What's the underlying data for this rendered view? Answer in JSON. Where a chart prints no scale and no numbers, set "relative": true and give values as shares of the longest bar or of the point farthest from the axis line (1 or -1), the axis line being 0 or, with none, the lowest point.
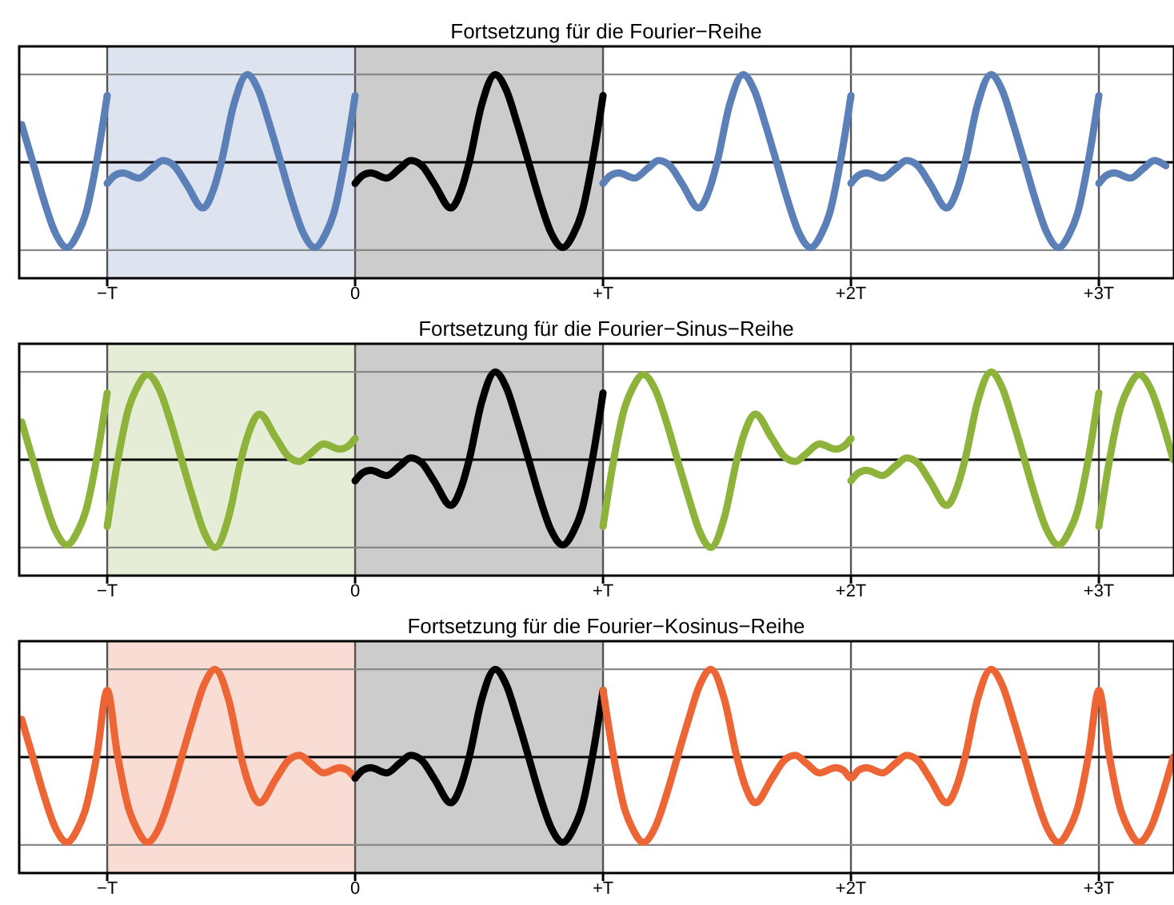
{
  "chart_data": [
    {
      "type": "line",
      "title": "Fortsetzung für die Fourier−Reihe",
      "relative": true,
      "xlim": [
        -1.355,
        3.303
      ],
      "xticks": [
        {
          "value": -1,
          "label": "−T"
        },
        {
          "value": 0,
          "label": "0"
        },
        {
          "value": 1,
          "label": "+T"
        },
        {
          "value": 2,
          "label": "+2T"
        },
        {
          "value": 3,
          "label": "+3T"
        }
      ],
      "grid": "x",
      "bands": [
        {
          "axis": "x",
          "from": -1,
          "to": 0,
          "color": "#dde3ef"
        },
        {
          "axis": "x",
          "from": 0,
          "to": 1,
          "color": "#cccccc"
        }
      ],
      "ref_lines": [
        {
          "axis": "y",
          "value": 1,
          "color": "#888888"
        },
        {
          "axis": "y",
          "value": -1,
          "color": "#888888"
        }
      ],
      "series": [
        {
          "color": "#5b80b8",
          "x": [
            -1.345,
            -1.3,
            -1.259,
            -1.21,
            -1.162,
            -1.12,
            -1.086,
            -1.04,
            -1
          ],
          "values": [
            0.43,
            0,
            -0.4,
            -0.8,
            -0.97,
            -0.82,
            -0.58,
            0.05,
            0.76
          ]
        },
        {
          "color": "#5b80b8",
          "x": [
            -1,
            -0.97,
            -0.9375,
            -0.873,
            -0.82,
            -0.776,
            -0.73,
            -0.68,
            -0.614,
            -0.57,
            -0.539,
            -0.49,
            -0.435,
            -0.39,
            -0.345,
            -0.3,
            -0.259,
            -0.21,
            -0.162,
            -0.12,
            -0.086,
            -0.04,
            0
          ],
          "values": [
            -0.24,
            -0.15,
            -0.12,
            -0.18,
            -0.07,
            0.02,
            -0.04,
            -0.25,
            -0.52,
            -0.3,
            0.01,
            0.65,
            1,
            0.82,
            0.43,
            0,
            -0.4,
            -0.8,
            -0.97,
            -0.82,
            -0.58,
            0.05,
            0.76
          ]
        },
        {
          "color": "#000000",
          "x": [
            0,
            0.03,
            0.0625,
            0.127,
            0.18,
            0.224,
            0.27,
            0.32,
            0.386,
            0.43,
            0.461,
            0.51,
            0.565,
            0.61,
            0.655,
            0.7,
            0.741,
            0.79,
            0.838,
            0.88,
            0.914,
            0.96,
            1
          ],
          "values": [
            -0.24,
            -0.15,
            -0.12,
            -0.18,
            -0.07,
            0.02,
            -0.04,
            -0.25,
            -0.52,
            -0.3,
            0.01,
            0.65,
            1,
            0.82,
            0.43,
            0,
            -0.4,
            -0.8,
            -0.97,
            -0.82,
            -0.58,
            0.05,
            0.76
          ]
        },
        {
          "color": "#5b80b8",
          "x": [
            1,
            1.03,
            1.0625,
            1.127,
            1.18,
            1.224,
            1.27,
            1.32,
            1.386,
            1.43,
            1.461,
            1.51,
            1.565,
            1.61,
            1.655,
            1.7,
            1.741,
            1.79,
            1.838,
            1.88,
            1.914,
            1.96,
            2
          ],
          "values": [
            -0.24,
            -0.15,
            -0.12,
            -0.18,
            -0.07,
            0.02,
            -0.04,
            -0.25,
            -0.52,
            -0.3,
            0.01,
            0.65,
            1,
            0.82,
            0.43,
            0,
            -0.4,
            -0.8,
            -0.97,
            -0.82,
            -0.58,
            0.05,
            0.76
          ]
        },
        {
          "color": "#5b80b8",
          "x": [
            2,
            2.03,
            2.0625,
            2.127,
            2.18,
            2.224,
            2.27,
            2.32,
            2.386,
            2.43,
            2.461,
            2.51,
            2.565,
            2.61,
            2.655,
            2.7,
            2.741,
            2.79,
            2.838,
            2.88,
            2.914,
            2.96,
            3
          ],
          "values": [
            -0.24,
            -0.15,
            -0.12,
            -0.18,
            -0.07,
            0.02,
            -0.04,
            -0.25,
            -0.52,
            -0.3,
            0.01,
            0.65,
            1,
            0.82,
            0.43,
            0,
            -0.4,
            -0.8,
            -0.97,
            -0.82,
            -0.58,
            0.05,
            0.76
          ]
        },
        {
          "color": "#5b80b8",
          "x": [
            3,
            3.03,
            3.0625,
            3.127,
            3.18,
            3.224,
            3.27
          ],
          "values": [
            -0.24,
            -0.15,
            -0.12,
            -0.18,
            -0.07,
            0.02,
            -0.04
          ]
        }
      ]
    },
    {
      "type": "line",
      "title": "Fortsetzung für die Fourier−Sinus−Reihe",
      "relative": true,
      "xlim": [
        -1.355,
        3.303
      ],
      "xticks": [
        {
          "value": -1,
          "label": "−T"
        },
        {
          "value": 0,
          "label": "0"
        },
        {
          "value": 1,
          "label": "+T"
        },
        {
          "value": 2,
          "label": "+2T"
        },
        {
          "value": 3,
          "label": "+3T"
        }
      ],
      "grid": "x",
      "bands": [
        {
          "axis": "x",
          "from": -1,
          "to": 0,
          "color": "#e6edd6"
        },
        {
          "axis": "x",
          "from": 0,
          "to": 1,
          "color": "#cccccc"
        }
      ],
      "ref_lines": [
        {
          "axis": "y",
          "value": 1,
          "color": "#888888"
        },
        {
          "axis": "y",
          "value": -1,
          "color": "#888888"
        }
      ],
      "series": [
        {
          "color": "#8db33a",
          "x": [
            -1.345,
            -1.3,
            -1.259,
            -1.21,
            -1.162,
            -1.12,
            -1.086,
            -1.04,
            -1
          ],
          "values": [
            0.43,
            0,
            -0.4,
            -0.8,
            -0.97,
            -0.82,
            -0.58,
            0.05,
            0.76
          ]
        },
        {
          "color": "#8db33a",
          "x": [
            -1,
            -0.96,
            -0.914,
            -0.88,
            -0.838,
            -0.79,
            -0.741,
            -0.7,
            -0.655,
            -0.61,
            -0.565,
            -0.51,
            -0.461,
            -0.43,
            -0.386,
            -0.32,
            -0.27,
            -0.224,
            -0.18,
            -0.127,
            -0.0625,
            -0.03,
            0
          ],
          "values": [
            -0.76,
            -0.05,
            0.58,
            0.82,
            0.97,
            0.8,
            0.4,
            0,
            -0.43,
            -0.82,
            -1,
            -0.65,
            -0.01,
            0.3,
            0.52,
            0.25,
            0.04,
            -0.02,
            0.07,
            0.18,
            0.12,
            0.15,
            0.24
          ]
        },
        {
          "color": "#000000",
          "x": [
            0,
            0.03,
            0.0625,
            0.127,
            0.18,
            0.224,
            0.27,
            0.32,
            0.386,
            0.43,
            0.461,
            0.51,
            0.565,
            0.61,
            0.655,
            0.7,
            0.741,
            0.79,
            0.838,
            0.88,
            0.914,
            0.96,
            1
          ],
          "values": [
            -0.24,
            -0.15,
            -0.12,
            -0.18,
            -0.07,
            0.02,
            -0.04,
            -0.25,
            -0.52,
            -0.3,
            0.01,
            0.65,
            1,
            0.82,
            0.43,
            0,
            -0.4,
            -0.8,
            -0.97,
            -0.82,
            -0.58,
            0.05,
            0.76
          ]
        },
        {
          "color": "#8db33a",
          "x": [
            1,
            1.04,
            1.086,
            1.12,
            1.162,
            1.21,
            1.259,
            1.3,
            1.345,
            1.39,
            1.435,
            1.49,
            1.539,
            1.57,
            1.614,
            1.68,
            1.73,
            1.776,
            1.82,
            1.873,
            1.9375,
            1.97,
            2
          ],
          "values": [
            -0.76,
            -0.05,
            0.58,
            0.82,
            0.97,
            0.8,
            0.4,
            0,
            -0.43,
            -0.82,
            -1,
            -0.65,
            -0.01,
            0.3,
            0.52,
            0.25,
            0.04,
            -0.02,
            0.07,
            0.18,
            0.12,
            0.15,
            0.24
          ]
        },
        {
          "color": "#8db33a",
          "x": [
            2,
            2.03,
            2.0625,
            2.127,
            2.18,
            2.224,
            2.27,
            2.32,
            2.386,
            2.43,
            2.461,
            2.51,
            2.565,
            2.61,
            2.655,
            2.7,
            2.741,
            2.79,
            2.838,
            2.88,
            2.914,
            2.96,
            3
          ],
          "values": [
            -0.24,
            -0.15,
            -0.12,
            -0.18,
            -0.07,
            0.02,
            -0.04,
            -0.25,
            -0.52,
            -0.3,
            0.01,
            0.65,
            1,
            0.82,
            0.43,
            0,
            -0.4,
            -0.8,
            -0.97,
            -0.82,
            -0.58,
            0.05,
            0.76
          ]
        },
        {
          "color": "#8db33a",
          "x": [
            3,
            3.04,
            3.086,
            3.12,
            3.162,
            3.21,
            3.259,
            3.3
          ],
          "values": [
            -0.76,
            -0.05,
            0.58,
            0.82,
            0.97,
            0.8,
            0.4,
            0
          ]
        }
      ]
    },
    {
      "type": "line",
      "title": "Fortsetzung für die Fourier−Kosinus−Reihe",
      "relative": true,
      "xlim": [
        -1.355,
        3.303
      ],
      "xticks": [
        {
          "value": -1,
          "label": "−T"
        },
        {
          "value": 0,
          "label": "0"
        },
        {
          "value": 1,
          "label": "+T"
        },
        {
          "value": 2,
          "label": "+2T"
        },
        {
          "value": 3,
          "label": "+3T"
        }
      ],
      "grid": "x",
      "bands": [
        {
          "axis": "x",
          "from": -1,
          "to": 0,
          "color": "#f9dcd3"
        },
        {
          "axis": "x",
          "from": 0,
          "to": 1,
          "color": "#cccccc"
        }
      ],
      "ref_lines": [
        {
          "axis": "y",
          "value": 1,
          "color": "#888888"
        },
        {
          "axis": "y",
          "value": -1,
          "color": "#888888"
        }
      ],
      "series": [
        {
          "color": "#ee6535",
          "x": [
            -1.345,
            -1.3,
            -1.259,
            -1.21,
            -1.162,
            -1.12,
            -1.086,
            -1.04,
            -1,
            -0.96,
            -0.914,
            -0.88,
            -0.838,
            -0.79,
            -0.741,
            -0.7,
            -0.655,
            -0.61,
            -0.565,
            -0.51,
            -0.461,
            -0.43,
            -0.386,
            -0.32,
            -0.27,
            -0.224,
            -0.18,
            -0.127,
            -0.0625,
            -0.03,
            0
          ],
          "values": [
            0.43,
            0,
            -0.4,
            -0.8,
            -0.97,
            -0.82,
            -0.58,
            0.05,
            0.76,
            0.05,
            -0.58,
            -0.82,
            -0.97,
            -0.8,
            -0.4,
            0,
            0.43,
            0.82,
            1,
            0.65,
            0.01,
            -0.3,
            -0.52,
            -0.25,
            -0.04,
            0.02,
            -0.07,
            -0.18,
            -0.12,
            -0.15,
            -0.24
          ]
        },
        {
          "color": "#000000",
          "x": [
            0,
            0.03,
            0.0625,
            0.127,
            0.18,
            0.224,
            0.27,
            0.32,
            0.386,
            0.43,
            0.461,
            0.51,
            0.565,
            0.61,
            0.655,
            0.7,
            0.741,
            0.79,
            0.838,
            0.88,
            0.914,
            0.96,
            1
          ],
          "values": [
            -0.24,
            -0.15,
            -0.12,
            -0.18,
            -0.07,
            0.02,
            -0.04,
            -0.25,
            -0.52,
            -0.3,
            0.01,
            0.65,
            1,
            0.82,
            0.43,
            0,
            -0.4,
            -0.8,
            -0.97,
            -0.82,
            -0.58,
            0.05,
            0.76
          ]
        },
        {
          "color": "#ee6535",
          "x": [
            1,
            1.04,
            1.086,
            1.12,
            1.162,
            1.21,
            1.259,
            1.3,
            1.345,
            1.39,
            1.435,
            1.49,
            1.539,
            1.57,
            1.614,
            1.68,
            1.73,
            1.776,
            1.82,
            1.873,
            1.9375,
            1.97,
            2,
            2.03,
            2.0625,
            2.127,
            2.18,
            2.224,
            2.27,
            2.32,
            2.386,
            2.43,
            2.461,
            2.51,
            2.565,
            2.61,
            2.655,
            2.7,
            2.741,
            2.79,
            2.838,
            2.88,
            2.914,
            2.96,
            3,
            3.04,
            3.086,
            3.12,
            3.162,
            3.21,
            3.259,
            3.3
          ],
          "values": [
            0.76,
            0.05,
            -0.58,
            -0.82,
            -0.97,
            -0.8,
            -0.4,
            0,
            0.43,
            0.82,
            1,
            0.65,
            0.01,
            -0.3,
            -0.52,
            -0.25,
            -0.04,
            0.02,
            -0.07,
            -0.18,
            -0.12,
            -0.15,
            -0.24,
            -0.15,
            -0.12,
            -0.18,
            -0.07,
            0.02,
            -0.04,
            -0.25,
            -0.52,
            -0.3,
            0.01,
            0.65,
            1,
            0.82,
            0.43,
            0,
            -0.4,
            -0.8,
            -0.97,
            -0.82,
            -0.58,
            0.05,
            0.76,
            0.05,
            -0.58,
            -0.82,
            -0.97,
            -0.8,
            -0.4,
            0
          ]
        }
      ]
    }
  ]
}
